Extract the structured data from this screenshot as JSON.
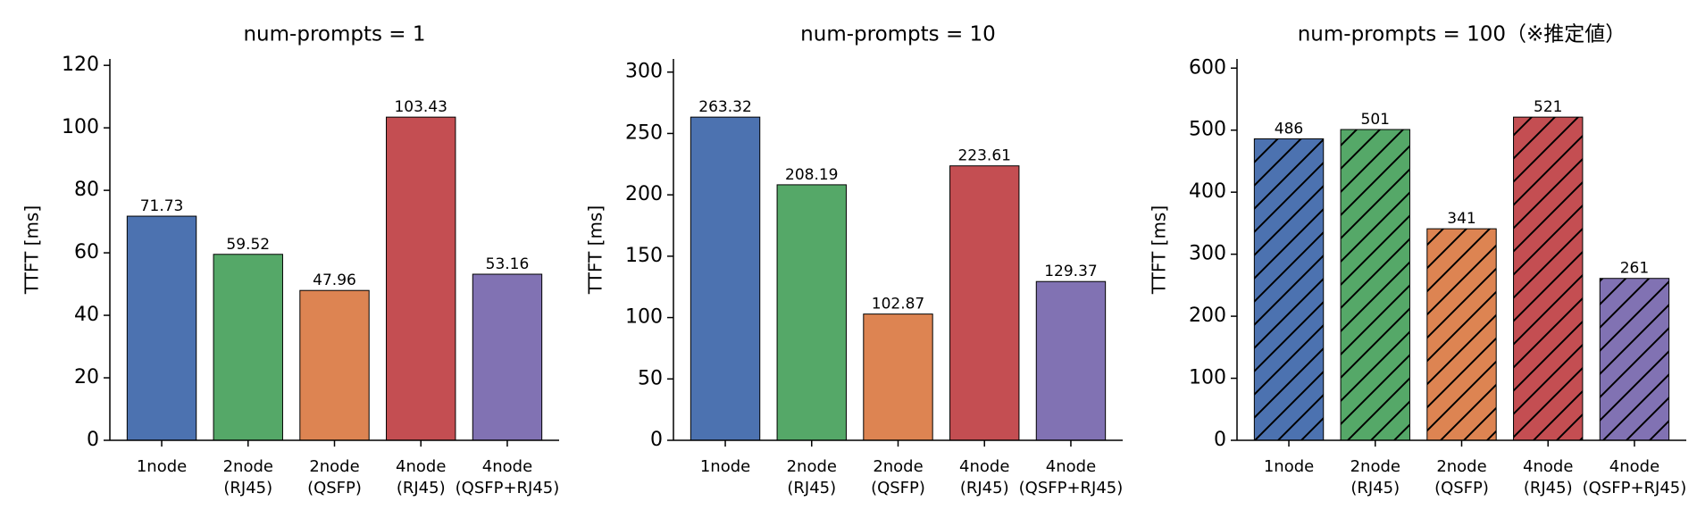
{
  "chart_data": [
    {
      "type": "bar",
      "title": "num-prompts = 1",
      "y_label": "TTFT [ms]",
      "categories": [
        [
          "1node"
        ],
        [
          "2node",
          "(RJ45)"
        ],
        [
          "2node",
          "(QSFP)"
        ],
        [
          "4node",
          "(RJ45)"
        ],
        [
          "4node",
          "(QSFP+RJ45)"
        ]
      ],
      "values": [
        71.73,
        59.52,
        47.96,
        103.43,
        53.16
      ],
      "colors": [
        "#4c72b0",
        "#55a868",
        "#dd8452",
        "#c44e52",
        "#8172b3"
      ],
      "ylim": [
        0,
        122.05
      ],
      "yticks": [
        0,
        20,
        40,
        60,
        80,
        100,
        120
      ],
      "hatch": false
    },
    {
      "type": "bar",
      "title": "num-prompts = 10",
      "y_label": "TTFT [ms]",
      "categories": [
        [
          "1node"
        ],
        [
          "2node",
          "(RJ45)"
        ],
        [
          "2node",
          "(QSFP)"
        ],
        [
          "4node",
          "(RJ45)"
        ],
        [
          "4node",
          "(QSFP+RJ45)"
        ]
      ],
      "values": [
        263.32,
        208.19,
        102.87,
        223.61,
        129.37
      ],
      "colors": [
        "#4c72b0",
        "#55a868",
        "#dd8452",
        "#c44e52",
        "#8172b3"
      ],
      "ylim": [
        0,
        310.72
      ],
      "yticks": [
        0,
        50,
        100,
        150,
        200,
        250,
        300
      ],
      "hatch": false
    },
    {
      "type": "bar",
      "title": "num-prompts = 100（※推定値）",
      "y_label": "TTFT [ms]",
      "categories": [
        [
          "1node"
        ],
        [
          "2node",
          "(RJ45)"
        ],
        [
          "2node",
          "(QSFP)"
        ],
        [
          "4node",
          "(RJ45)"
        ],
        [
          "4node",
          "(QSFP+RJ45)"
        ]
      ],
      "values": [
        486,
        501,
        341,
        521,
        261
      ],
      "colors": [
        "#4c72b0",
        "#55a868",
        "#dd8452",
        "#c44e52",
        "#8172b3"
      ],
      "ylim": [
        0,
        614.78
      ],
      "yticks": [
        0,
        100,
        200,
        300,
        400,
        500,
        600
      ],
      "hatch": true
    }
  ]
}
